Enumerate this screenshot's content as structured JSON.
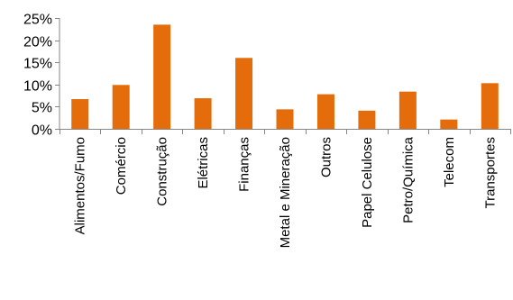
{
  "chart_data": {
    "type": "bar",
    "title": "",
    "xlabel": "",
    "ylabel": "",
    "categories": [
      "Alimentos/Fumo",
      "Comércio",
      "Construção",
      "Elétricas",
      "Finanças",
      "Metal e Mineração",
      "Outros",
      "Papel Celulose",
      "Petro/Química",
      "Telecom",
      "Transportes"
    ],
    "values": [
      6.7,
      9.9,
      23.5,
      6.9,
      16.0,
      4.4,
      7.8,
      4.1,
      8.4,
      2.1,
      10.3
    ],
    "ylim": [
      0,
      25
    ],
    "y_ticks": [
      0,
      5,
      10,
      15,
      20,
      25
    ],
    "y_tick_labels": [
      "0%",
      "5%",
      "10%",
      "15%",
      "20%",
      "25%"
    ],
    "bar_color": "#E46C0A",
    "grid": false,
    "legend": "none"
  }
}
